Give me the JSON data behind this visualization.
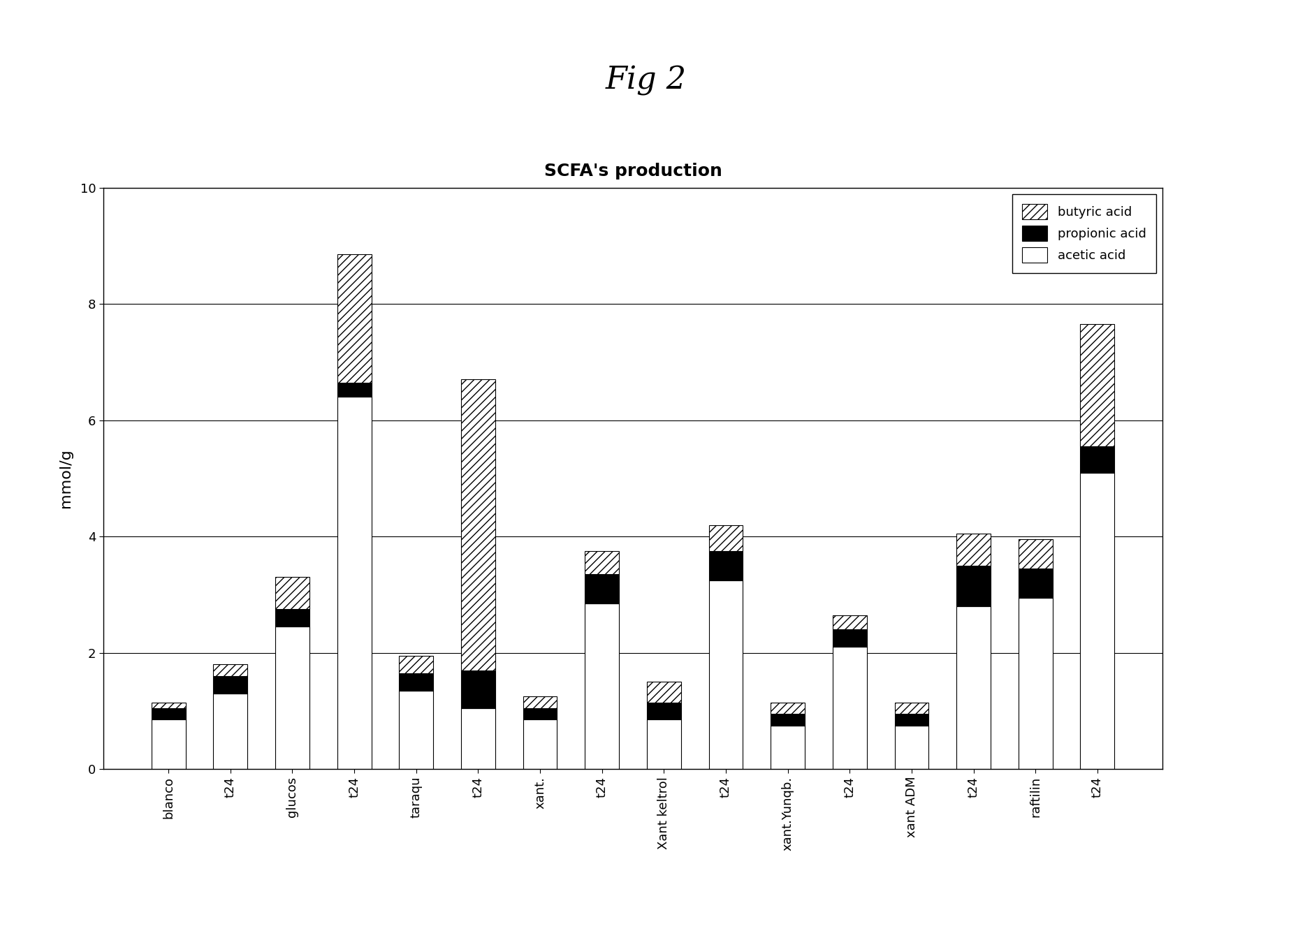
{
  "title": "Fig 2",
  "chart_title": "SCFA's production",
  "ylabel": "mmol/g",
  "ylim": [
    0,
    10
  ],
  "yticks": [
    0,
    2,
    4,
    6,
    8,
    10
  ],
  "categories": [
    "blanco",
    "t24",
    "glucos",
    "t24",
    "taraqu",
    "t24",
    "xant.",
    "t24",
    "Xant keltrol",
    "t24",
    "xant.Yunqb.",
    "t24",
    "xant ADM",
    "t24",
    "raftilin",
    "t24"
  ],
  "acetic_acid": [
    0.85,
    1.3,
    2.45,
    6.4,
    1.35,
    1.05,
    0.85,
    2.85,
    0.85,
    3.25,
    0.75,
    2.1,
    0.75,
    2.8,
    2.95,
    5.1
  ],
  "propionic_acid": [
    0.2,
    0.3,
    0.3,
    0.25,
    0.3,
    0.65,
    0.2,
    0.5,
    0.3,
    0.5,
    0.2,
    0.3,
    0.2,
    0.7,
    0.5,
    0.45
  ],
  "butyric_acid": [
    0.1,
    0.2,
    0.55,
    2.2,
    0.3,
    5.0,
    0.2,
    0.4,
    0.35,
    0.45,
    0.2,
    0.25,
    0.2,
    0.55,
    0.5,
    2.1
  ],
  "acetic_color": "#ffffff",
  "acetic_edgecolor": "#000000",
  "propionic_color": "#000000",
  "bar_width": 0.55,
  "background_color": "#ffffff",
  "title_fontsize": 32,
  "chart_title_fontsize": 18,
  "ylabel_fontsize": 16,
  "tick_fontsize": 13,
  "legend_fontsize": 13
}
